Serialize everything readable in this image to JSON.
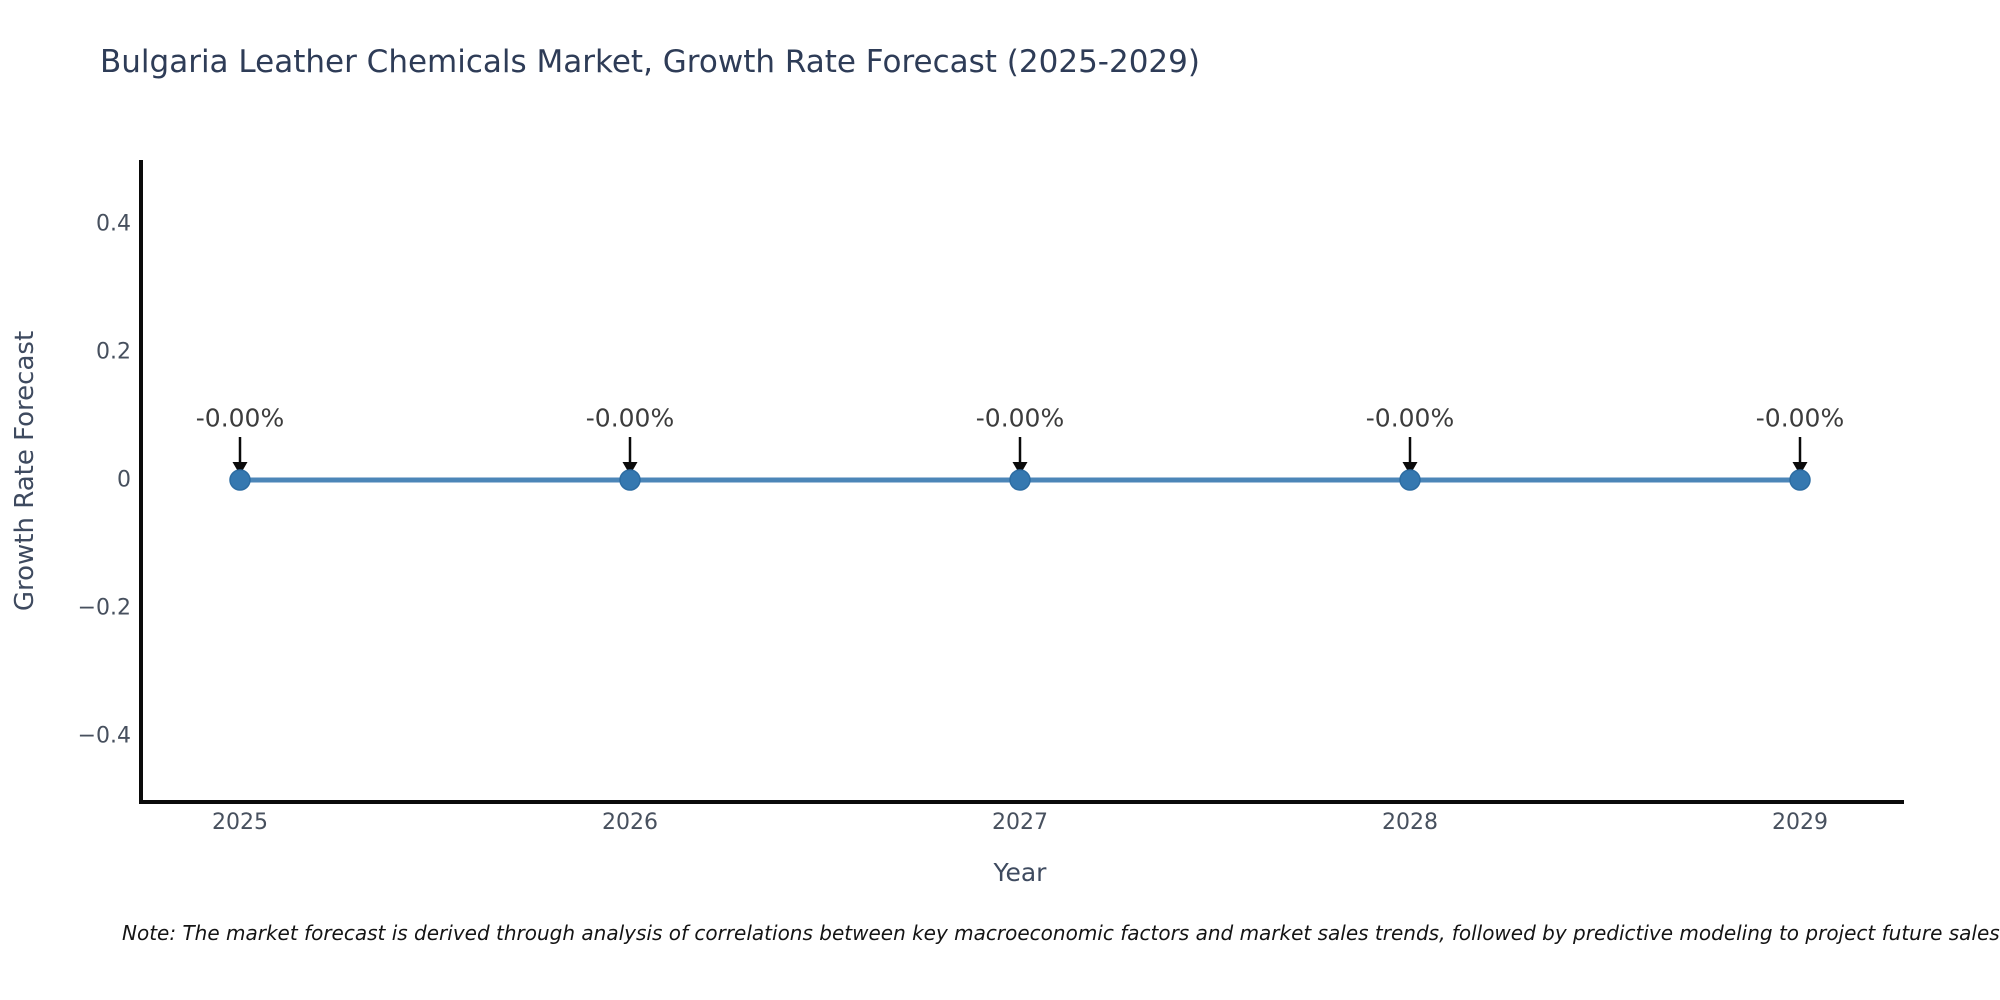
{
  "title": "Bulgaria Leather Chemicals Market, Growth Rate Forecast (2025-2029)",
  "note": "Note: The market forecast is derived through analysis of correlations between key macroeconomic factors and market sales trends, followed by predictive modeling to project future sales.",
  "chart_data": {
    "type": "line",
    "title": "Bulgaria Leather Chemicals Market, Growth Rate Forecast (2025-2029)",
    "categories": [
      "2025",
      "2026",
      "2027",
      "2028",
      "2029"
    ],
    "series": [
      {
        "name": "Growth Rate Forecast",
        "values": [
          0,
          0,
          0,
          0,
          0
        ]
      }
    ],
    "point_labels": [
      "-0.00%",
      "-0.00%",
      "-0.00%",
      "-0.00%",
      "-0.00%"
    ],
    "xlabel": "Year",
    "ylabel": "Growth Rate Forecast",
    "ylim": [
      -0.5,
      0.5
    ],
    "ytick_values": [
      0.4,
      0.2,
      0,
      -0.2,
      -0.4
    ],
    "ytick_labels": [
      "0.4",
      "0.2",
      "0",
      "−0.2",
      "−0.4"
    ],
    "grid": false,
    "legend": false,
    "colors": {
      "line": "#4c86b8",
      "marker": "#3578b0",
      "marker_edge": "#2d6da3",
      "arrow": "#0a0a0a",
      "spine": "#0a0a0a",
      "annotation_text": "#3c3c3c",
      "tick_text": "#47505e",
      "axis_label_text": "#3e4a5f",
      "title_text": "#2e3c57"
    }
  }
}
